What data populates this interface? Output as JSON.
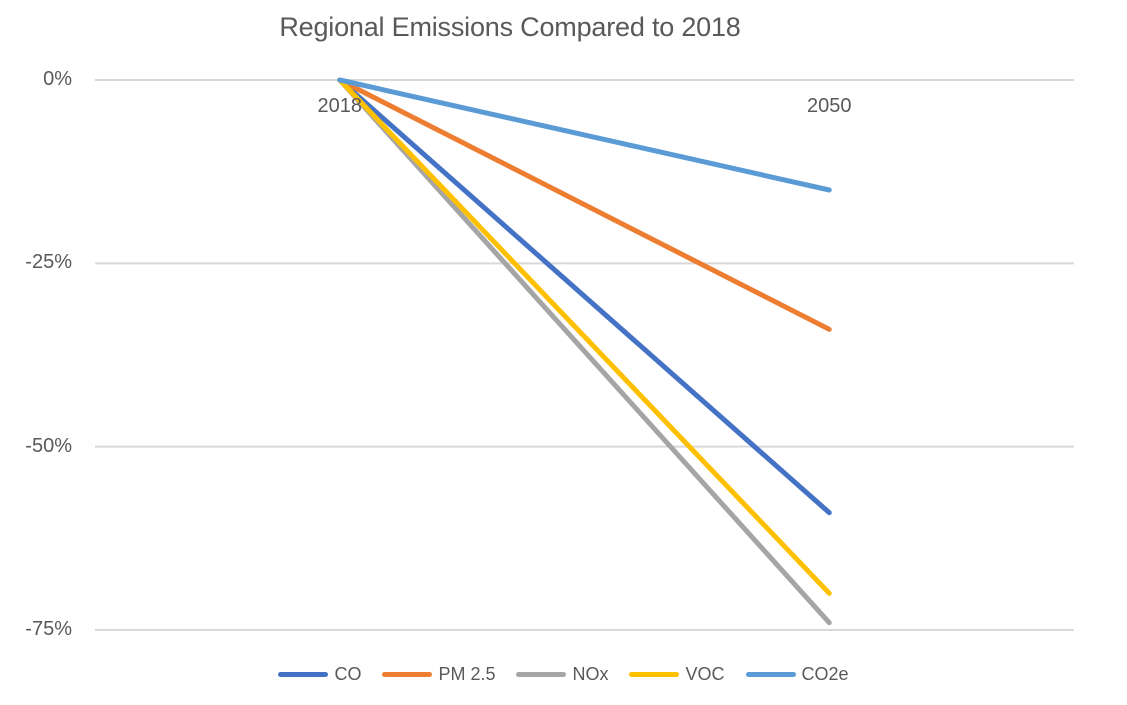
{
  "chart_data": {
    "type": "line",
    "title": "Regional Emissions Compared to 2018",
    "x": [
      "2018",
      "2050"
    ],
    "series": [
      {
        "name": "CO",
        "color": "#4472C4",
        "values": [
          0,
          -59
        ]
      },
      {
        "name": "PM 2.5",
        "color": "#ED7D31",
        "values": [
          0,
          -34
        ]
      },
      {
        "name": "NOx",
        "color": "#A5A5A5",
        "values": [
          0,
          -74
        ]
      },
      {
        "name": "VOC",
        "color": "#FFC000",
        "values": [
          0,
          -70
        ]
      },
      {
        "name": "CO2e",
        "color": "#5B9BD5",
        "values": [
          0,
          -15
        ]
      }
    ],
    "unit": "%",
    "yticks": [
      0,
      -25,
      -50,
      -75
    ],
    "ytick_labels": [
      "0%",
      "-25%",
      "-50%",
      "-75%"
    ],
    "ylim": [
      -75,
      0
    ],
    "grid": true,
    "legend_position": "bottom"
  },
  "colors": {
    "background": "#FFFFFF",
    "gridline": "#D9D9D9",
    "text": "#595959"
  }
}
